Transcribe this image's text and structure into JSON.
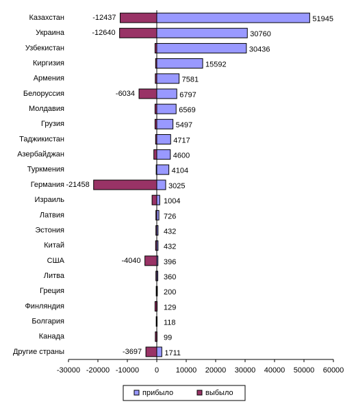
{
  "chart_data": {
    "type": "bar",
    "orientation": "horizontal",
    "categories": [
      "Казахстан",
      "Украина",
      "Узбекистан",
      "Киргизия",
      "Армения",
      "Белоруссия",
      "Молдавия",
      "Грузия",
      "Таджикистан",
      "Азербайджан",
      "Туркмения",
      "Германия",
      "Израиль",
      "Латвия",
      "Эстония",
      "Китай",
      "США",
      "Литва",
      "Греция",
      "Финляндия",
      "Болгария",
      "Канада",
      "Другие страны"
    ],
    "series": [
      {
        "name": "прибыло",
        "color": "#9999ff",
        "values": [
          51945,
          30760,
          30436,
          15592,
          7581,
          6797,
          6569,
          5497,
          4717,
          4600,
          4104,
          3025,
          1004,
          726,
          432,
          432,
          396,
          360,
          200,
          129,
          118,
          99,
          1711
        ]
      },
      {
        "name": "выбыло",
        "color": "#993366",
        "values": [
          -12437,
          -12640,
          -600,
          -400,
          -500,
          -6034,
          -600,
          -600,
          -400,
          -1000,
          -200,
          -21458,
          -1600,
          -300,
          -300,
          -400,
          -4040,
          -300,
          -200,
          -600,
          -200,
          -500,
          -3697
        ],
        "value_labels": [
          "-12437",
          "-12640",
          null,
          null,
          null,
          "-6034",
          null,
          null,
          null,
          null,
          null,
          "-21458",
          null,
          null,
          null,
          null,
          "-4040",
          null,
          null,
          null,
          null,
          null,
          "-3697"
        ]
      }
    ],
    "xlim": [
      -30000,
      60000
    ],
    "xticks": [
      -30000,
      -20000,
      -10000,
      0,
      10000,
      20000,
      30000,
      40000,
      50000,
      60000
    ],
    "legend": "bottom",
    "grid": false
  }
}
